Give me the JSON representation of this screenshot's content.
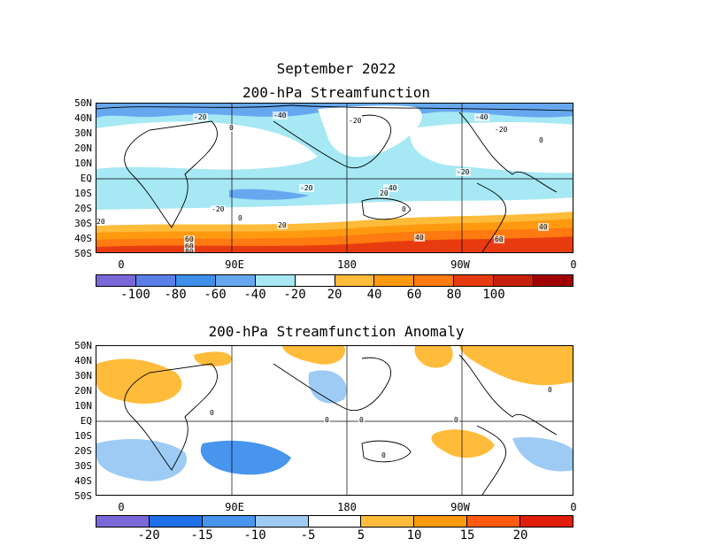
{
  "figure": {
    "title_line1": "September 2022",
    "panel1_title": "200-hPa Streamfunction",
    "panel2_title": "200-hPa Streamfunction Anomaly"
  },
  "lat_labels": [
    "50N",
    "40N",
    "30N",
    "20N",
    "10N",
    "EQ",
    "10S",
    "20S",
    "30S",
    "40S",
    "50S"
  ],
  "lon_labels": [
    "0",
    "90E",
    "180",
    "90W",
    "0"
  ],
  "map1": {
    "contour_labels": [
      "-40",
      "-20",
      "0",
      "-20",
      "-40",
      "-20",
      "0",
      "-20",
      "-40",
      "-20",
      "-20",
      "0",
      "20",
      "0",
      "20",
      "20",
      "40",
      "60",
      "40",
      "60",
      "80",
      "60"
    ]
  },
  "map2": {
    "contour_labels": [
      "0",
      "0",
      "0",
      "0",
      "0",
      "0"
    ]
  },
  "colorbar1": {
    "labels": [
      "-100",
      "-80",
      "-60",
      "-40",
      "-20",
      "20",
      "40",
      "60",
      "80",
      "100"
    ],
    "colors": [
      "#7b68d8",
      "#5a80e8",
      "#3d8fea",
      "#66a8f0",
      "#a6e8f4",
      "#ffffff",
      "#ffbb3a",
      "#ff9a10",
      "#ff7a10",
      "#e83c10",
      "#c81f0a",
      "#a00000"
    ]
  },
  "colorbar2": {
    "labels": [
      "-20",
      "-15",
      "-10",
      "-5",
      "5",
      "10",
      "15",
      "20"
    ],
    "colors": [
      "#7b68d8",
      "#1f6fe8",
      "#4895ee",
      "#9dcbf4",
      "#ffffff",
      "#ffbb3a",
      "#ff9a10",
      "#ff5a10",
      "#e01e0a"
    ]
  }
}
